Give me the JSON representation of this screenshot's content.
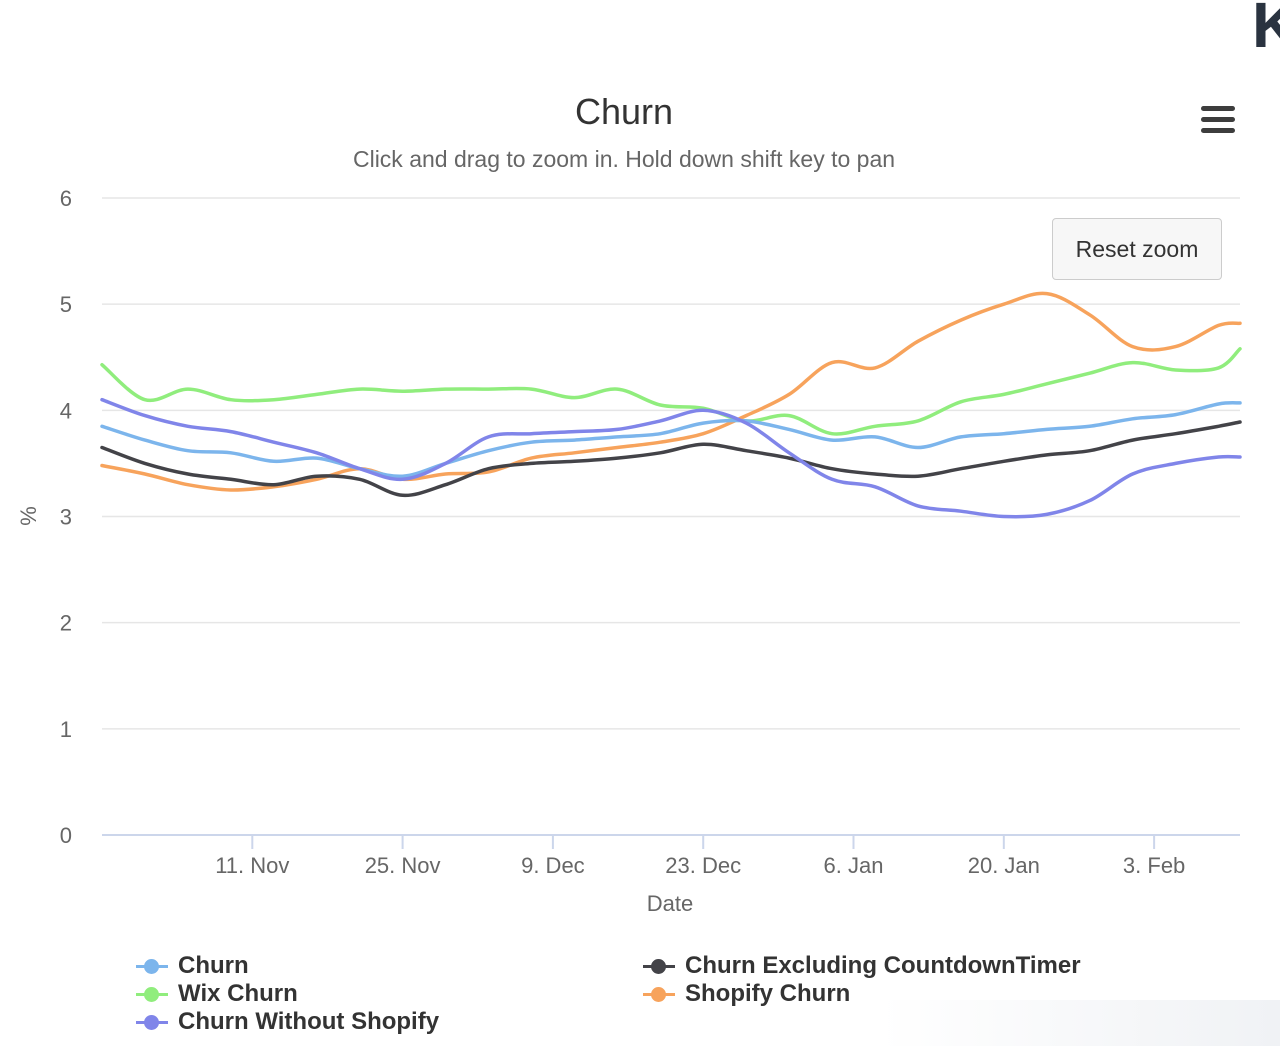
{
  "header": {
    "corner_text": "K"
  },
  "chart_data": {
    "type": "line",
    "title": "Churn",
    "subtitle": "Click and drag to zoom in. Hold down shift key to pan",
    "xlabel": "Date",
    "ylabel": "%",
    "ylim": [
      0,
      6
    ],
    "yticks": [
      "0",
      "1",
      "2",
      "3",
      "4",
      "5",
      "6"
    ],
    "xticks": [
      {
        "label": "11. Nov",
        "day": 14
      },
      {
        "label": "25. Nov",
        "day": 28
      },
      {
        "label": "9. Dec",
        "day": 42
      },
      {
        "label": "23. Dec",
        "day": 56
      },
      {
        "label": "6. Jan",
        "day": 70
      },
      {
        "label": "20. Jan",
        "day": 84
      },
      {
        "label": "3. Feb",
        "day": 98
      }
    ],
    "x_range_days": [
      0,
      106
    ],
    "x": [
      0,
      4,
      8,
      12,
      16,
      20,
      24,
      28,
      32,
      36,
      40,
      44,
      48,
      52,
      56,
      60,
      64,
      68,
      72,
      76,
      80,
      84,
      88,
      92,
      96,
      100,
      104,
      106
    ],
    "series": [
      {
        "name": "Churn",
        "color": "#7cb5ec",
        "values": [
          3.85,
          3.72,
          3.62,
          3.6,
          3.52,
          3.55,
          3.45,
          3.38,
          3.5,
          3.62,
          3.7,
          3.72,
          3.75,
          3.78,
          3.88,
          3.9,
          3.82,
          3.72,
          3.75,
          3.65,
          3.75,
          3.78,
          3.82,
          3.85,
          3.92,
          3.96,
          4.06,
          4.07
        ]
      },
      {
        "name": "Wix Churn",
        "color": "#90ed7d",
        "values": [
          4.43,
          4.1,
          4.2,
          4.1,
          4.1,
          4.15,
          4.2,
          4.18,
          4.2,
          4.2,
          4.2,
          4.12,
          4.2,
          4.05,
          4.02,
          3.9,
          3.95,
          3.78,
          3.85,
          3.9,
          4.08,
          4.15,
          4.25,
          4.35,
          4.45,
          4.38,
          4.4,
          4.58
        ]
      },
      {
        "name": "Churn Without Shopify",
        "color": "#8085e9",
        "values": [
          4.1,
          3.95,
          3.85,
          3.8,
          3.7,
          3.6,
          3.45,
          3.35,
          3.5,
          3.75,
          3.78,
          3.8,
          3.82,
          3.9,
          4.0,
          3.88,
          3.6,
          3.35,
          3.28,
          3.1,
          3.05,
          3.0,
          3.02,
          3.15,
          3.4,
          3.5,
          3.56,
          3.56
        ]
      },
      {
        "name": "Churn Excluding CountdownTimer",
        "color": "#434348",
        "values": [
          3.65,
          3.5,
          3.4,
          3.35,
          3.3,
          3.38,
          3.35,
          3.2,
          3.3,
          3.45,
          3.5,
          3.52,
          3.55,
          3.6,
          3.68,
          3.62,
          3.55,
          3.45,
          3.4,
          3.38,
          3.45,
          3.52,
          3.58,
          3.62,
          3.72,
          3.78,
          3.85,
          3.89
        ]
      },
      {
        "name": "Shopify Churn",
        "color": "#f7a35c",
        "values": [
          3.48,
          3.4,
          3.3,
          3.25,
          3.28,
          3.35,
          3.45,
          3.35,
          3.4,
          3.42,
          3.55,
          3.6,
          3.65,
          3.7,
          3.78,
          3.95,
          4.15,
          4.45,
          4.4,
          4.65,
          4.85,
          5.0,
          5.1,
          4.9,
          4.6,
          4.6,
          4.8,
          4.82
        ]
      }
    ]
  },
  "toolbar": {
    "reset_label": "Reset zoom"
  },
  "legend": {
    "churn": "Churn",
    "wix": "Wix Churn",
    "without_shopify": "Churn Without Shopify",
    "excluding_countdown": "Churn Excluding CountdownTimer",
    "shopify": "Shopify Churn"
  },
  "colors": {
    "churn": "#7cb5ec",
    "wix": "#90ed7d",
    "without_shopify": "#8085e9",
    "excluding_countdown": "#434348",
    "shopify": "#f7a35c"
  }
}
